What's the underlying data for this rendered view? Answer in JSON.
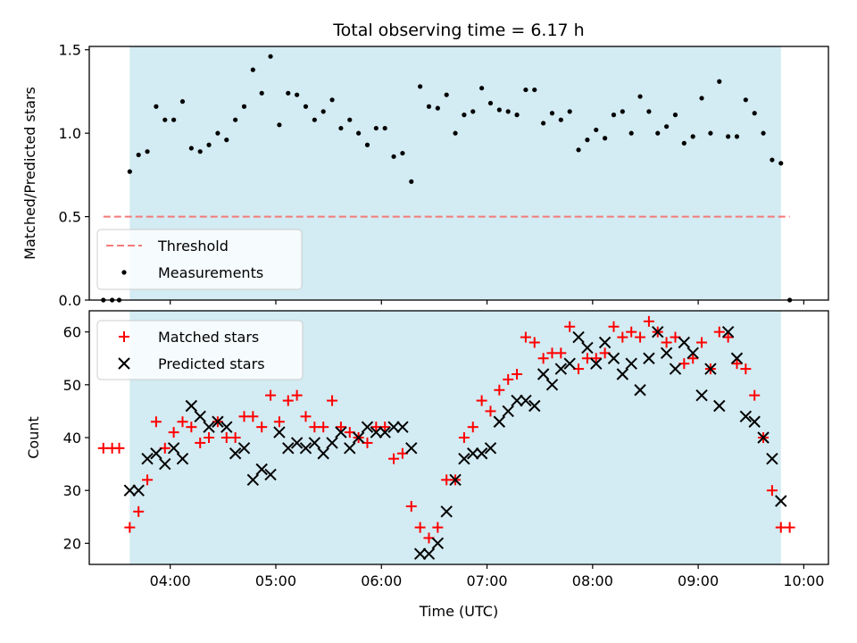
{
  "chart_data": [
    {
      "type": "scatter",
      "title": "Total observing time = 6.17 h",
      "xlabel": "",
      "ylabel": "Matched/Predicted stars",
      "xlim": [
        "03:14",
        "10:14"
      ],
      "ylim": [
        0,
        1.52
      ],
      "yticks": [
        "0.0",
        "0.5",
        "1.0",
        "1.5"
      ],
      "yticks_values": [
        0,
        0.5,
        1.0,
        1.5
      ],
      "shaded_interval": [
        "03:37",
        "09:47"
      ],
      "shade_color": "#d3ebf2",
      "threshold": {
        "name": "Threshold",
        "value": 0.5,
        "x_range": [
          "03:22",
          "09:52"
        ],
        "color": "#f47a7a",
        "style": "dashed"
      },
      "series": [
        {
          "name": "Measurements",
          "color": "#000000",
          "marker": "dot",
          "x": [
            "03:22",
            "03:27",
            "03:31",
            "03:37",
            "03:42",
            "03:47",
            "03:52",
            "03:57",
            "04:02",
            "04:07",
            "04:12",
            "04:17",
            "04:22",
            "04:27",
            "04:32",
            "04:37",
            "04:42",
            "04:47",
            "04:52",
            "04:57",
            "05:02",
            "05:07",
            "05:12",
            "05:17",
            "05:22",
            "05:27",
            "05:32",
            "05:37",
            "05:42",
            "05:47",
            "05:52",
            "05:57",
            "06:02",
            "06:07",
            "06:12",
            "06:17",
            "06:22",
            "06:27",
            "06:32",
            "06:37",
            "06:42",
            "06:47",
            "06:52",
            "06:57",
            "07:02",
            "07:07",
            "07:12",
            "07:17",
            "07:22",
            "07:27",
            "07:32",
            "07:37",
            "07:42",
            "07:47",
            "07:52",
            "07:57",
            "08:02",
            "08:07",
            "08:12",
            "08:17",
            "08:22",
            "08:27",
            "08:32",
            "08:37",
            "08:42",
            "08:47",
            "08:52",
            "08:57",
            "09:02",
            "09:07",
            "09:12",
            "09:17",
            "09:22",
            "09:27",
            "09:32",
            "09:37",
            "09:42",
            "09:47",
            "09:52"
          ],
          "y": [
            0.0,
            0.0,
            0.0,
            0.77,
            0.87,
            0.89,
            1.16,
            1.08,
            1.08,
            1.19,
            0.91,
            0.89,
            0.93,
            1.0,
            0.96,
            1.08,
            1.16,
            1.38,
            1.24,
            1.46,
            1.05,
            1.24,
            1.23,
            1.16,
            1.08,
            1.13,
            1.2,
            1.03,
            1.08,
            1.0,
            0.93,
            1.03,
            1.03,
            0.86,
            0.88,
            0.71,
            1.28,
            1.16,
            1.15,
            1.23,
            1.0,
            1.11,
            1.13,
            1.27,
            1.18,
            1.14,
            1.13,
            1.11,
            1.26,
            1.26,
            1.06,
            1.12,
            1.08,
            1.13,
            0.9,
            0.96,
            1.02,
            0.97,
            1.11,
            1.13,
            1.0,
            1.22,
            1.13,
            1.0,
            1.04,
            1.11,
            0.94,
            0.98,
            1.21,
            1.0,
            1.31,
            0.98,
            0.98,
            1.2,
            1.12,
            1.0,
            0.84,
            0.82,
            0.0
          ]
        }
      ],
      "legend": {
        "location": "lower left",
        "entries": [
          "Threshold",
          "Measurements"
        ]
      }
    },
    {
      "type": "scatter",
      "title": "",
      "xlabel": "Time (UTC)",
      "ylabel": "Count",
      "xlim": [
        "03:14",
        "10:14"
      ],
      "ylim": [
        16,
        64
      ],
      "xticks": [
        "04:00",
        "05:00",
        "06:00",
        "07:00",
        "08:00",
        "09:00",
        "10:00"
      ],
      "yticks": [
        "20",
        "30",
        "40",
        "50",
        "60"
      ],
      "yticks_values": [
        20,
        30,
        40,
        50,
        60
      ],
      "shaded_interval": [
        "03:37",
        "09:47"
      ],
      "shade_color": "#d3ebf2",
      "series": [
        {
          "name": "Matched stars",
          "color": "#ff0000",
          "marker": "plus",
          "x": [
            "03:22",
            "03:27",
            "03:31",
            "03:37",
            "03:42",
            "03:47",
            "03:52",
            "03:57",
            "04:02",
            "04:07",
            "04:12",
            "04:17",
            "04:22",
            "04:27",
            "04:32",
            "04:37",
            "04:42",
            "04:47",
            "04:52",
            "04:57",
            "05:02",
            "05:07",
            "05:12",
            "05:17",
            "05:22",
            "05:27",
            "05:32",
            "05:37",
            "05:42",
            "05:47",
            "05:52",
            "05:57",
            "06:02",
            "06:07",
            "06:12",
            "06:17",
            "06:22",
            "06:27",
            "06:32",
            "06:37",
            "06:42",
            "06:47",
            "06:52",
            "06:57",
            "07:02",
            "07:07",
            "07:12",
            "07:17",
            "07:22",
            "07:27",
            "07:32",
            "07:37",
            "07:42",
            "07:47",
            "07:52",
            "07:57",
            "08:02",
            "08:07",
            "08:12",
            "08:17",
            "08:22",
            "08:27",
            "08:32",
            "08:37",
            "08:42",
            "08:47",
            "08:52",
            "08:57",
            "09:02",
            "09:07",
            "09:12",
            "09:17",
            "09:22",
            "09:27",
            "09:32",
            "09:37",
            "09:42",
            "09:47",
            "09:52"
          ],
          "y": [
            38,
            38,
            38,
            23,
            26,
            32,
            43,
            38,
            41,
            43,
            42,
            39,
            40,
            43,
            40,
            40,
            44,
            44,
            42,
            48,
            43,
            47,
            48,
            44,
            42,
            42,
            47,
            42,
            41,
            40,
            39,
            42,
            42,
            36,
            37,
            27,
            23,
            21,
            23,
            32,
            32,
            40,
            42,
            47,
            45,
            49,
            51,
            52,
            59,
            58,
            55,
            56,
            56,
            61,
            53,
            55,
            55,
            56,
            61,
            59,
            60,
            59,
            62,
            60,
            58,
            59,
            54,
            55,
            58,
            53,
            60,
            59,
            54,
            53,
            48,
            40,
            30,
            23,
            23
          ]
        },
        {
          "name": "Predicted stars",
          "color": "#000000",
          "marker": "x",
          "x": [
            "03:37",
            "03:42",
            "03:47",
            "03:52",
            "03:57",
            "04:02",
            "04:07",
            "04:12",
            "04:17",
            "04:22",
            "04:27",
            "04:32",
            "04:37",
            "04:42",
            "04:47",
            "04:52",
            "04:57",
            "05:02",
            "05:07",
            "05:12",
            "05:17",
            "05:22",
            "05:27",
            "05:32",
            "05:37",
            "05:42",
            "05:47",
            "05:52",
            "05:57",
            "06:02",
            "06:07",
            "06:12",
            "06:17",
            "06:22",
            "06:27",
            "06:32",
            "06:37",
            "06:42",
            "06:47",
            "06:52",
            "06:57",
            "07:02",
            "07:07",
            "07:12",
            "07:17",
            "07:22",
            "07:27",
            "07:32",
            "07:37",
            "07:42",
            "07:47",
            "07:52",
            "07:57",
            "08:02",
            "08:07",
            "08:12",
            "08:17",
            "08:22",
            "08:27",
            "08:32",
            "08:37",
            "08:42",
            "08:47",
            "08:52",
            "08:57",
            "09:02",
            "09:07",
            "09:12",
            "09:17",
            "09:22",
            "09:27",
            "09:32",
            "09:37",
            "09:42",
            "09:47"
          ],
          "y": [
            30,
            30,
            36,
            37,
            35,
            38,
            36,
            46,
            44,
            42,
            43,
            42,
            37,
            38,
            32,
            34,
            33,
            41,
            38,
            39,
            38,
            39,
            37,
            39,
            41,
            38,
            40,
            42,
            41,
            41,
            42,
            42,
            38,
            18,
            18,
            20,
            26,
            32,
            36,
            37,
            37,
            38,
            43,
            45,
            47,
            47,
            46,
            52,
            50,
            53,
            54,
            59,
            57,
            54,
            58,
            55,
            52,
            54,
            49,
            55,
            60,
            56,
            53,
            58,
            56,
            48,
            53,
            46,
            60,
            55,
            44,
            43,
            40,
            36,
            28
          ]
        }
      ],
      "legend": {
        "location": "upper left",
        "entries": [
          "Matched stars",
          "Predicted stars"
        ]
      }
    }
  ]
}
